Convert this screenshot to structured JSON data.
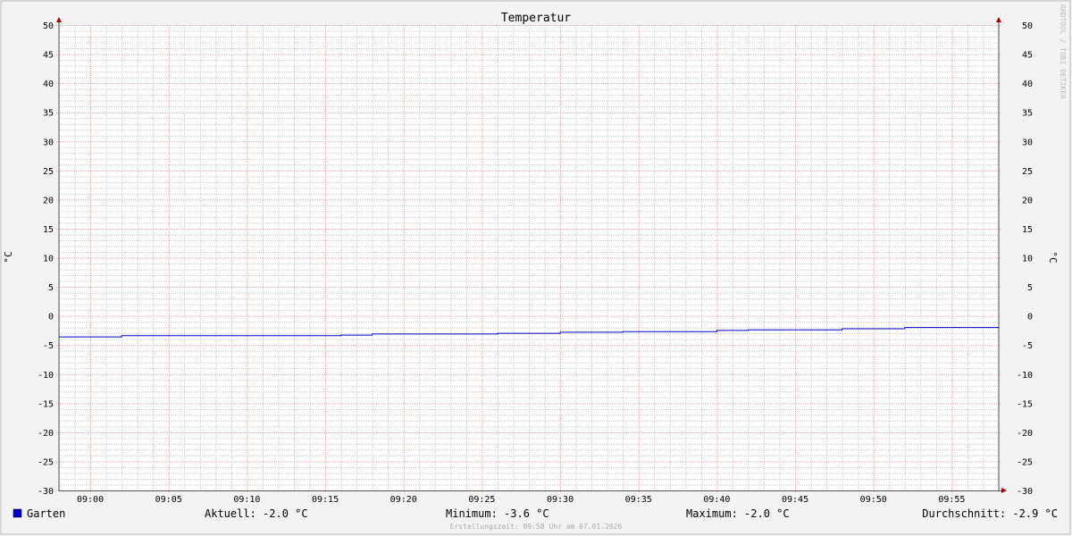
{
  "chart_data": {
    "type": "line",
    "title": "Temperatur",
    "ylabel": "°C",
    "ylabel_right": "°C",
    "ylim": [
      -30,
      50
    ],
    "yticks": [
      50,
      45,
      40,
      35,
      30,
      25,
      20,
      15,
      10,
      5,
      0,
      -5,
      -10,
      -15,
      -20,
      -25,
      -30
    ],
    "xlim": [
      "08:58",
      "09:58"
    ],
    "xticks": [
      "09:00",
      "09:05",
      "09:10",
      "09:15",
      "09:20",
      "09:25",
      "09:30",
      "09:35",
      "09:40",
      "09:45",
      "09:50",
      "09:55"
    ],
    "grid": true,
    "watermark": "RRDTOOL / TOBI OETIKER",
    "series": [
      {
        "name": "Garten",
        "color": "#0000cc",
        "step": true,
        "x": [
          "08:58",
          "09:02",
          "09:16",
          "09:18",
          "09:26",
          "09:30",
          "09:34",
          "09:40",
          "09:42",
          "09:48",
          "09:52",
          "09:58"
        ],
        "values": [
          -3.6,
          -3.4,
          -3.3,
          -3.1,
          -3.0,
          -2.8,
          -2.7,
          -2.5,
          -2.4,
          -2.2,
          -2.0,
          -2.0
        ]
      }
    ],
    "legend": {
      "placement": "bottom",
      "label": "Garten",
      "current": "Aktuell: -2.0 °C",
      "minimum": "Minimum: -3.6 °C",
      "maximum": "Maximum: -2.0 °C",
      "average": "Durchschnitt: -2.9 °C"
    },
    "footer": "Erstellungszeit: 09:58 Uhr am 07.01.2026"
  }
}
